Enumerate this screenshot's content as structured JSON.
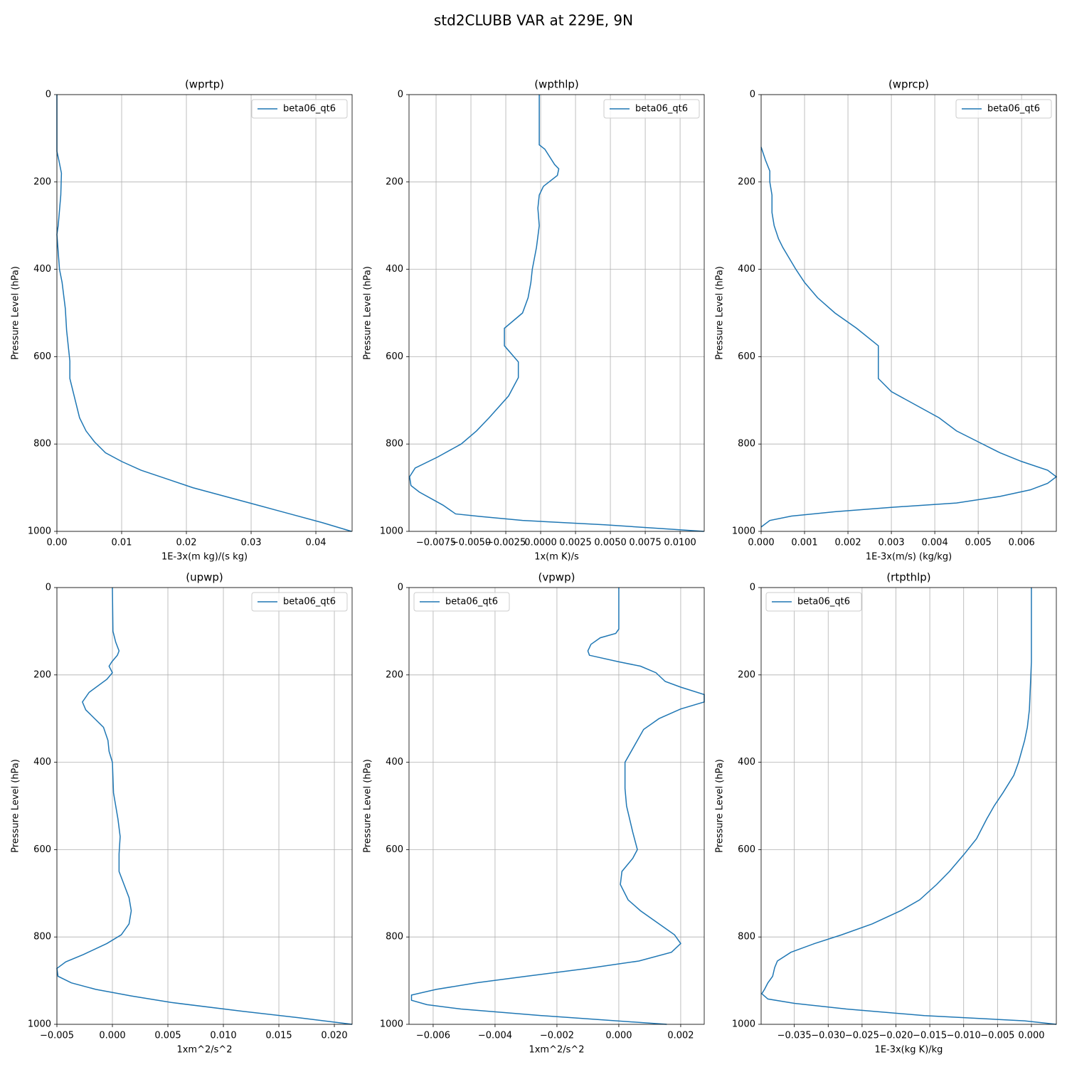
{
  "title": "std2CLUBB VAR at 229E, 9N",
  "chart_data": [
    {
      "type": "line",
      "title": "(wprtp)",
      "xlabel": "1E-3x(m kg)/(s kg)",
      "ylabel": "Pressure Level (hPa)",
      "grid": true,
      "legend": "upper right",
      "xlim": [
        0,
        0.0456
      ],
      "xticks": [
        {
          "value": 0,
          "label": "0.00"
        },
        {
          "value": 0.01,
          "label": "0.01"
        },
        {
          "value": 0.02,
          "label": "0.02"
        },
        {
          "value": 0.03,
          "label": "0.03"
        },
        {
          "value": 0.04,
          "label": "0.04"
        }
      ],
      "ylim": [
        1000,
        0
      ],
      "yticks": [
        0,
        200,
        400,
        600,
        800,
        1000
      ],
      "y": [
        0,
        130,
        150,
        180,
        230,
        300,
        320,
        400,
        430,
        490,
        540,
        610,
        650,
        680,
        740,
        770,
        795,
        820,
        840,
        860,
        880,
        900,
        920,
        940,
        960,
        980,
        1000
      ],
      "series": [
        {
          "name": "beta06_qt6",
          "color": "#1f77b4",
          "values": [
            0,
            0,
            0.0003,
            0.0007,
            0.0006,
            0.0002,
            0,
            0.0004,
            0.0008,
            0.0013,
            0.0015,
            0.002,
            0.002,
            0.0025,
            0.0035,
            0.0045,
            0.0058,
            0.0075,
            0.01,
            0.013,
            0.017,
            0.021,
            0.026,
            0.031,
            0.036,
            0.041,
            0.0455
          ]
        }
      ]
    },
    {
      "type": "line",
      "title": "(wpthlp)",
      "xlabel": "1x(m K)/s",
      "ylabel": "Pressure Level (hPa)",
      "grid": true,
      "legend": "upper right",
      "xlim": [
        -0.00944,
        0.01173
      ],
      "xticks": [
        {
          "value": -0.0075,
          "label": "−0.0075"
        },
        {
          "value": -0.005,
          "label": "−0.0050"
        },
        {
          "value": -0.0025,
          "label": "−0.0025"
        },
        {
          "value": 0,
          "label": "0.0000"
        },
        {
          "value": 0.0025,
          "label": "0.0025"
        },
        {
          "value": 0.005,
          "label": "0.0050"
        },
        {
          "value": 0.0075,
          "label": "0.0075"
        },
        {
          "value": 0.01,
          "label": "0.0100"
        }
      ],
      "ylim": [
        1000,
        0
      ],
      "yticks": [
        0,
        200,
        400,
        600,
        800,
        1000
      ],
      "y": [
        0,
        115,
        125,
        160,
        170,
        185,
        210,
        230,
        260,
        300,
        350,
        400,
        430,
        465,
        500,
        535,
        575,
        612,
        648,
        690,
        740,
        770,
        800,
        830,
        855,
        875,
        895,
        910,
        940,
        960,
        966,
        975,
        985,
        1000
      ],
      "series": [
        {
          "name": "beta06_qt6",
          "color": "#1f77b4",
          "values": [
            -0.0001,
            -0.0001,
            0.0003,
            0.001,
            0.0013,
            0.0012,
            0.0002,
            -0.0001,
            -0.0002,
            -0.0001,
            -0.0003,
            -0.0006,
            -0.0007,
            -0.0009,
            -0.0013,
            -0.0026,
            -0.0026,
            -0.0016,
            -0.0016,
            -0.0023,
            -0.0037,
            -0.0046,
            -0.0057,
            -0.0074,
            -0.009,
            -0.0094,
            -0.0093,
            -0.0087,
            -0.007,
            -0.0061,
            -0.0043,
            -0.0013,
            0.0046,
            0.0117
          ]
        }
      ]
    },
    {
      "type": "line",
      "title": "(wprcp)",
      "xlabel": "1E-3x(m/s) (kg/kg)",
      "ylabel": "Pressure Level (hPa)",
      "grid": true,
      "legend": "upper right",
      "xlim": [
        0,
        0.0068
      ],
      "xticks": [
        {
          "value": 0,
          "label": "0.000"
        },
        {
          "value": 0.001,
          "label": "0.001"
        },
        {
          "value": 0.002,
          "label": "0.002"
        },
        {
          "value": 0.003,
          "label": "0.003"
        },
        {
          "value": 0.004,
          "label": "0.004"
        },
        {
          "value": 0.005,
          "label": "0.005"
        },
        {
          "value": 0.006,
          "label": "0.006"
        }
      ],
      "ylim": [
        1000,
        0
      ],
      "yticks": [
        0,
        200,
        400,
        600,
        800,
        1000
      ],
      "y": [
        120,
        150,
        175,
        200,
        230,
        270,
        300,
        330,
        350,
        400,
        430,
        465,
        500,
        535,
        575,
        650,
        680,
        740,
        770,
        795,
        820,
        840,
        860,
        875,
        890,
        905,
        920,
        935,
        945,
        955,
        965,
        975,
        990
      ],
      "series": [
        {
          "name": "beta06_qt6",
          "color": "#1f77b4",
          "values": [
            0,
            0.0001,
            0.0002,
            0.0002,
            0.00025,
            0.00025,
            0.0003,
            0.0004,
            0.0005,
            0.0008,
            0.001,
            0.0013,
            0.0017,
            0.0022,
            0.0027,
            0.0027,
            0.003,
            0.0041,
            0.0045,
            0.005,
            0.0055,
            0.006,
            0.0066,
            0.0068,
            0.0066,
            0.0062,
            0.0055,
            0.0045,
            0.003,
            0.0017,
            0.0007,
            0.0002,
            0
          ]
        }
      ]
    },
    {
      "type": "line",
      "title": "(upwp)",
      "xlabel": "1xm^2/s^2",
      "ylabel": "Pressure Level (hPa)",
      "grid": true,
      "legend": "upper right",
      "xlim": [
        -0.005,
        0.0216
      ],
      "xticks": [
        {
          "value": -0.005,
          "label": "−0.005"
        },
        {
          "value": 0,
          "label": "0.000"
        },
        {
          "value": 0.005,
          "label": "0.005"
        },
        {
          "value": 0.01,
          "label": "0.010"
        },
        {
          "value": 0.015,
          "label": "0.015"
        },
        {
          "value": 0.02,
          "label": "0.020"
        }
      ],
      "ylim": [
        1000,
        0
      ],
      "yticks": [
        0,
        200,
        400,
        600,
        800,
        1000
      ],
      "y": [
        0,
        100,
        125,
        145,
        155,
        170,
        180,
        195,
        210,
        240,
        262,
        280,
        320,
        350,
        375,
        400,
        470,
        530,
        570,
        610,
        650,
        710,
        740,
        770,
        795,
        815,
        840,
        857,
        872,
        890,
        905,
        920,
        935,
        950,
        970,
        985,
        1000
      ],
      "series": [
        {
          "name": "beta06_qt6",
          "color": "#1f77b4",
          "values": [
            0,
            5e-05,
            0.0003,
            0.0006,
            0.00045,
            -5e-05,
            -0.0003,
            0,
            -0.0005,
            -0.0021,
            -0.0027,
            -0.0024,
            -0.0008,
            -0.0004,
            -0.0003,
            0,
            0.0001,
            0.0005,
            0.0007,
            0.0006,
            0.0006,
            0.0015,
            0.0017,
            0.0015,
            0.0008,
            -0.0005,
            -0.0026,
            -0.0042,
            -0.005,
            -0.0049,
            -0.0037,
            -0.0015,
            0.0017,
            0.0053,
            0.0117,
            0.0168,
            0.0216
          ]
        }
      ]
    },
    {
      "type": "line",
      "title": "(vpwp)",
      "xlabel": "1xm^2/s^2",
      "ylabel": "Pressure Level (hPa)",
      "grid": true,
      "legend": "upper left",
      "xlim": [
        -0.00678,
        0.00276
      ],
      "xticks": [
        {
          "value": -0.006,
          "label": "−0.006"
        },
        {
          "value": -0.004,
          "label": "−0.004"
        },
        {
          "value": -0.002,
          "label": "−0.002"
        },
        {
          "value": 0,
          "label": "0.000"
        },
        {
          "value": 0.002,
          "label": "0.002"
        }
      ],
      "ylim": [
        1000,
        0
      ],
      "yticks": [
        0,
        200,
        400,
        600,
        800,
        1000
      ],
      "y": [
        0,
        95,
        105,
        115,
        130,
        145,
        155,
        170,
        180,
        195,
        215,
        228,
        245,
        262,
        278,
        300,
        325,
        350,
        400,
        460,
        500,
        560,
        600,
        620,
        650,
        680,
        715,
        740,
        795,
        815,
        835,
        855,
        872,
        890,
        905,
        920,
        933,
        945,
        955,
        965,
        980,
        1000
      ],
      "series": [
        {
          "name": "beta06_qt6",
          "color": "#1f77b4",
          "values": [
            0,
            0,
            -0.0001,
            -0.0006,
            -0.0009,
            -0.001,
            -0.00095,
            0,
            0.0007,
            0.0012,
            0.0015,
            0.002,
            0.00276,
            0.00276,
            0.002,
            0.0013,
            0.0008,
            0.0006,
            0.0002,
            0.0002,
            0.00025,
            0.00045,
            0.0006,
            0.00045,
            0.0001,
            5e-05,
            0.0003,
            0.0007,
            0.0018,
            0.002,
            0.0017,
            0.00065,
            -0.001,
            -0.003,
            -0.0046,
            -0.0059,
            -0.0067,
            -0.0067,
            -0.0062,
            -0.0051,
            -0.0025,
            0.00155
          ]
        }
      ]
    },
    {
      "type": "line",
      "title": "(rtpthlp)",
      "xlabel": "1E-3x(kg K)/kg",
      "ylabel": "Pressure Level (hPa)",
      "grid": true,
      "legend": "upper left",
      "xlim": [
        -0.0399,
        0.00368
      ],
      "xticks": [
        {
          "value": -0.035,
          "label": "−0.035"
        },
        {
          "value": -0.03,
          "label": "−0.030"
        },
        {
          "value": -0.025,
          "label": "−0.025"
        },
        {
          "value": -0.02,
          "label": "−0.020"
        },
        {
          "value": -0.015,
          "label": "−0.015"
        },
        {
          "value": -0.01,
          "label": "−0.010"
        },
        {
          "value": -0.005,
          "label": "−0.005"
        },
        {
          "value": 0,
          "label": "0.000"
        }
      ],
      "ylim": [
        1000,
        0
      ],
      "yticks": [
        0,
        200,
        400,
        600,
        800,
        1000
      ],
      "y": [
        0,
        170,
        280,
        320,
        350,
        400,
        430,
        470,
        500,
        530,
        575,
        610,
        650,
        680,
        715,
        740,
        770,
        795,
        815,
        835,
        855,
        870,
        890,
        905,
        920,
        930,
        942,
        952,
        965,
        980,
        992,
        1000
      ],
      "series": [
        {
          "name": "beta06_qt6",
          "color": "#1f77b4",
          "values": [
            0,
            0,
            -0.0003,
            -0.0006,
            -0.001,
            -0.0019,
            -0.0026,
            -0.0042,
            -0.0055,
            -0.0066,
            -0.0081,
            -0.0099,
            -0.0121,
            -0.014,
            -0.0165,
            -0.0193,
            -0.0235,
            -0.028,
            -0.032,
            -0.0355,
            -0.0375,
            -0.0379,
            -0.0382,
            -0.0389,
            -0.0394,
            -0.0398,
            -0.0389,
            -0.035,
            -0.0273,
            -0.0158,
            -0.001,
            0.0037
          ]
        }
      ]
    }
  ]
}
